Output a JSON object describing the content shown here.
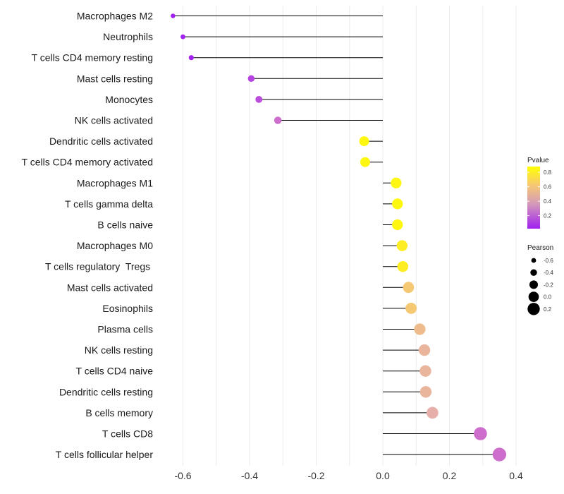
{
  "chart_data": {
    "type": "lollipop",
    "categories": [
      "Macrophages M2",
      "Neutrophils",
      "T cells CD4 memory resting",
      "Mast cells resting",
      "Monocytes",
      "NK cells activated",
      "Dendritic cells activated",
      "T cells CD4 memory activated",
      "Macrophages M1",
      "T cells gamma delta",
      "B cells naive",
      "Macrophages M0",
      "T cells regulatory  Tregs ",
      "Mast cells activated",
      "Eosinophils",
      "Plasma cells",
      "NK cells resting",
      "T cells CD4 naive",
      "Dendritic cells resting",
      "B cells memory",
      "T cells CD8",
      "T cells follicular helper"
    ],
    "values": [
      -0.63,
      -0.6,
      -0.575,
      -0.395,
      -0.372,
      -0.315,
      -0.056,
      -0.053,
      0.04,
      0.044,
      0.044,
      0.058,
      0.06,
      0.077,
      0.085,
      0.111,
      0.125,
      0.128,
      0.129,
      0.149,
      0.293,
      0.35
    ],
    "pvalues": [
      0.02,
      0.03,
      0.03,
      0.15,
      0.18,
      0.3,
      0.85,
      0.85,
      0.85,
      0.85,
      0.85,
      0.82,
      0.82,
      0.68,
      0.68,
      0.62,
      0.58,
      0.58,
      0.58,
      0.55,
      0.3,
      0.3
    ],
    "xlim": [
      -0.68,
      0.44
    ],
    "x_ticks": [
      -0.6,
      -0.4,
      -0.2,
      0.0,
      0.2,
      0.4
    ],
    "x_tick_labels": [
      "-0.6",
      "-0.4",
      "-0.2",
      "0.0",
      "0.2",
      "0.4"
    ],
    "xlabel": "",
    "ylabel": "",
    "grid": true,
    "color_legend": {
      "title": "Pvalue",
      "ticks": [
        0.8,
        0.6,
        0.4,
        0.2
      ],
      "tick_labels": [
        "0.8",
        "0.6",
        "0.4",
        "0.2"
      ],
      "range": [
        0.02,
        0.88
      ],
      "colors": [
        "#a020f0",
        "#d4a7b1",
        "#f7c874",
        "#ffff00"
      ]
    },
    "size_legend": {
      "title": "Pearson",
      "values": [
        -0.6,
        -0.4,
        -0.2,
        0.0,
        0.2
      ],
      "labels": [
        "-0.6",
        "-0.4",
        "-0.2",
        "0.0",
        "0.2"
      ]
    }
  }
}
